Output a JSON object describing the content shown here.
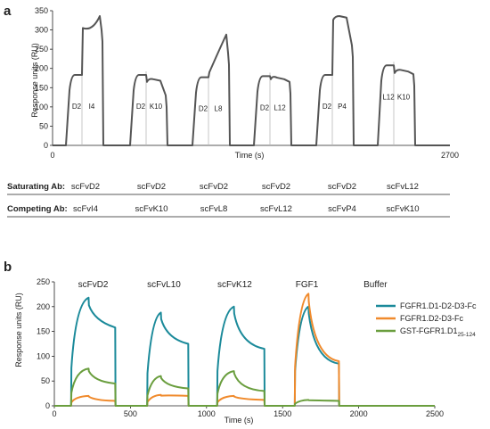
{
  "panel_a": {
    "label": "a",
    "chart_data": {
      "type": "line",
      "ylabel": "Response units (RU)",
      "xlabel": "Time (s)",
      "ylim": [
        0,
        350
      ],
      "yticks": [
        "0",
        "50",
        "100",
        "150",
        "200",
        "250",
        "300",
        "350"
      ],
      "xtick_labels": [
        "0",
        "2700"
      ],
      "grid": false,
      "cycles": [
        {
          "first": "D2",
          "second": "I4",
          "base": 0,
          "lvl1": 183,
          "lvl2": 336,
          "lvl2_start": 315,
          "end": 300
        },
        {
          "first": "D2",
          "second": "K10",
          "base": 0,
          "lvl1": 183,
          "lvl2": 172,
          "lvl2_start": 175,
          "end": 130
        },
        {
          "first": "D2",
          "second": "L8",
          "base": 0,
          "lvl1": 177,
          "lvl2": 288,
          "lvl2_start": 200,
          "end": 240
        },
        {
          "first": "D2",
          "second": "L12",
          "base": 0,
          "lvl1": 180,
          "lvl2": 176,
          "lvl2_start": 182,
          "end": 165
        },
        {
          "first": "D2",
          "second": "P4",
          "base": 0,
          "lvl1": 183,
          "lvl2": 336,
          "lvl2_start": 336,
          "end": 260
        },
        {
          "first": "L12",
          "second": "K10",
          "base": 0,
          "lvl1": 208,
          "lvl2": 196,
          "lvl2_start": 198,
          "end": 185
        }
      ]
    },
    "table": {
      "saturating_label": "Saturating Ab:",
      "competing_label": "Competing Ab:",
      "saturating": [
        "scFvD2",
        "scFvD2",
        "scFvD2",
        "scFvD2",
        "scFvD2",
        "scFvL12"
      ],
      "competing": [
        "scFvI4",
        "scFvK10",
        "scFvL8",
        "scFvL12",
        "scFvP4",
        "scFvK10"
      ]
    }
  },
  "panel_b": {
    "label": "b",
    "chart_data": {
      "type": "line",
      "ylabel": "Response units (RU)",
      "xlabel": "Time (s)",
      "xlim": [
        0,
        2500
      ],
      "ylim": [
        0,
        250
      ],
      "xticks": [
        "0",
        "500",
        "1000",
        "1500",
        "2000",
        "2500"
      ],
      "yticks": [
        "0",
        "50",
        "100",
        "150",
        "200",
        "250"
      ],
      "grid": false,
      "experiments": [
        "scFvD2",
        "scFvL10",
        "scFvK12",
        "FGF1",
        "Buffer"
      ],
      "series": [
        {
          "name": "FGFR1.D1-D2-D3-Fc",
          "color": "#1b8a9a",
          "injections": [
            {
              "start": 110,
              "assoc_end": 225,
              "dissoc_end": 400,
              "peak": 218,
              "end": 158
            },
            {
              "start": 610,
              "assoc_end": 700,
              "dissoc_end": 880,
              "peak": 188,
              "end": 125
            },
            {
              "start": 1070,
              "assoc_end": 1180,
              "dissoc_end": 1380,
              "peak": 200,
              "end": 115
            },
            {
              "start": 1580,
              "assoc_end": 1670,
              "dissoc_end": 1870,
              "peak": 200,
              "end": 85
            }
          ]
        },
        {
          "name": "FGFR1.D2-D3-Fc",
          "color": "#f08a2c",
          "injections": [
            {
              "start": 110,
              "assoc_end": 225,
              "dissoc_end": 400,
              "peak": 20,
              "end": 10
            },
            {
              "start": 610,
              "assoc_end": 700,
              "dissoc_end": 880,
              "peak": 22,
              "end": 20
            },
            {
              "start": 1070,
              "assoc_end": 1180,
              "dissoc_end": 1380,
              "peak": 20,
              "end": 12
            },
            {
              "start": 1580,
              "assoc_end": 1670,
              "dissoc_end": 1870,
              "peak": 226,
              "end": 90
            }
          ]
        },
        {
          "name": "GST-FGFR1.D1",
          "name_sub": "25-124",
          "color": "#6a9e3e",
          "injections": [
            {
              "start": 110,
              "assoc_end": 225,
              "dissoc_end": 400,
              "peak": 75,
              "end": 45
            },
            {
              "start": 610,
              "assoc_end": 700,
              "dissoc_end": 880,
              "peak": 60,
              "end": 35
            },
            {
              "start": 1070,
              "assoc_end": 1180,
              "dissoc_end": 1380,
              "peak": 70,
              "end": 30
            },
            {
              "start": 1580,
              "assoc_end": 1670,
              "dissoc_end": 1870,
              "peak": 12,
              "end": 10
            }
          ]
        }
      ]
    }
  }
}
